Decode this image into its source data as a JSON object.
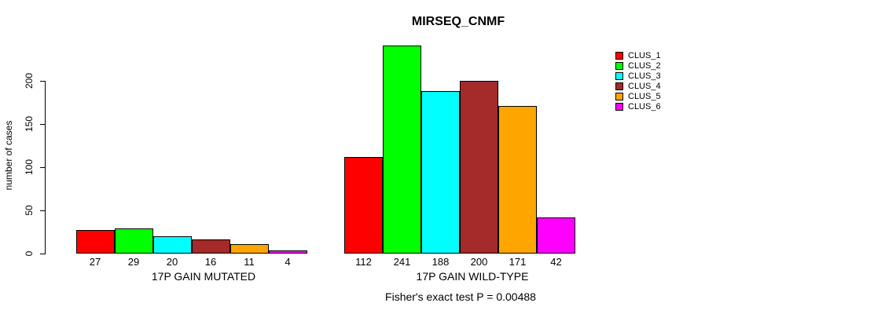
{
  "title": "MIRSEQ_CNMF",
  "y_axis": {
    "label": "number of cases",
    "ticks": [
      0,
      50,
      100,
      150,
      200
    ]
  },
  "footer": "Fisher's exact test P = 0.00488",
  "legend": {
    "items": [
      {
        "label": "CLUS_1",
        "color": "#FF0000"
      },
      {
        "label": "CLUS_2",
        "color": "#00FF00"
      },
      {
        "label": "CLUS_3",
        "color": "#00FFFF"
      },
      {
        "label": "CLUS_4",
        "color": "#A52A2A"
      },
      {
        "label": "CLUS_5",
        "color": "#FFA500"
      },
      {
        "label": "CLUS_6",
        "color": "#FF00FF"
      }
    ]
  },
  "chart_data": {
    "type": "bar",
    "title": "MIRSEQ_CNMF",
    "ylabel": "number of cases",
    "xlabel": "",
    "ylim": [
      0,
      241
    ],
    "yticks": [
      0,
      50,
      100,
      150,
      200
    ],
    "grid": false,
    "legend_position": "right",
    "series_names": [
      "CLUS_1",
      "CLUS_2",
      "CLUS_3",
      "CLUS_4",
      "CLUS_5",
      "CLUS_6"
    ],
    "series_colors": [
      "#FF0000",
      "#00FF00",
      "#00FFFF",
      "#A52A2A",
      "#FFA500",
      "#FF00FF"
    ],
    "groups": [
      {
        "label": "17P GAIN MUTATED",
        "values": [
          27,
          29,
          20,
          16,
          11,
          4
        ]
      },
      {
        "label": "17P GAIN WILD-TYPE",
        "values": [
          112,
          241,
          188,
          200,
          171,
          42
        ]
      }
    ],
    "annotation": "Fisher's exact test P = 0.00488"
  }
}
